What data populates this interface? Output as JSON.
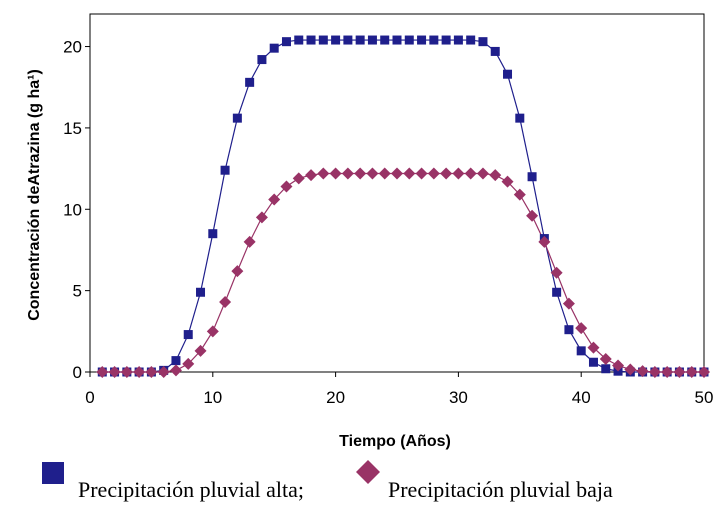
{
  "chart_data": {
    "type": "line",
    "title": "",
    "xlabel": "Tiempo (Años)",
    "ylabel": "Concentración deAtrazina (g ha¹)",
    "xlim": [
      0,
      50
    ],
    "ylim": [
      0,
      22
    ],
    "xticks": [
      0,
      10,
      20,
      30,
      40,
      50
    ],
    "yticks": [
      0,
      5,
      10,
      15,
      20
    ],
    "grid": false,
    "legend_position": "bottom",
    "series": [
      {
        "name": "Precipitación pluvial alta;",
        "color": "#1f1f8c",
        "marker": "square",
        "x": [
          1,
          2,
          3,
          4,
          5,
          6,
          7,
          8,
          9,
          10,
          11,
          12,
          13,
          14,
          15,
          16,
          17,
          18,
          19,
          20,
          21,
          22,
          23,
          24,
          25,
          26,
          27,
          28,
          29,
          30,
          31,
          32,
          33,
          34,
          35,
          36,
          37,
          38,
          39,
          40,
          41,
          42,
          43,
          44,
          45,
          46,
          47,
          48,
          49,
          50
        ],
        "values": [
          0,
          0,
          0,
          0,
          0,
          0.1,
          0.7,
          2.3,
          4.9,
          8.5,
          12.4,
          15.6,
          17.8,
          19.2,
          19.9,
          20.3,
          20.4,
          20.4,
          20.4,
          20.4,
          20.4,
          20.4,
          20.4,
          20.4,
          20.4,
          20.4,
          20.4,
          20.4,
          20.4,
          20.4,
          20.4,
          20.3,
          19.7,
          18.3,
          15.6,
          12.0,
          8.2,
          4.9,
          2.6,
          1.3,
          0.6,
          0.2,
          0.05,
          0,
          0,
          0,
          0,
          0,
          0,
          0
        ]
      },
      {
        "name": "Precipitación pluvial baja",
        "color": "#993366",
        "marker": "diamond",
        "x": [
          1,
          2,
          3,
          4,
          5,
          6,
          7,
          8,
          9,
          10,
          11,
          12,
          13,
          14,
          15,
          16,
          17,
          18,
          19,
          20,
          21,
          22,
          23,
          24,
          25,
          26,
          27,
          28,
          29,
          30,
          31,
          32,
          33,
          34,
          35,
          36,
          37,
          38,
          39,
          40,
          41,
          42,
          43,
          44,
          45,
          46,
          47,
          48,
          49,
          50
        ],
        "values": [
          0,
          0,
          0,
          0,
          0,
          0,
          0.1,
          0.5,
          1.3,
          2.5,
          4.3,
          6.2,
          8.0,
          9.5,
          10.6,
          11.4,
          11.9,
          12.1,
          12.2,
          12.2,
          12.2,
          12.2,
          12.2,
          12.2,
          12.2,
          12.2,
          12.2,
          12.2,
          12.2,
          12.2,
          12.2,
          12.2,
          12.1,
          11.7,
          10.9,
          9.6,
          8.0,
          6.1,
          4.2,
          2.7,
          1.5,
          0.8,
          0.4,
          0.15,
          0.05,
          0,
          0,
          0,
          0,
          0
        ]
      }
    ]
  }
}
